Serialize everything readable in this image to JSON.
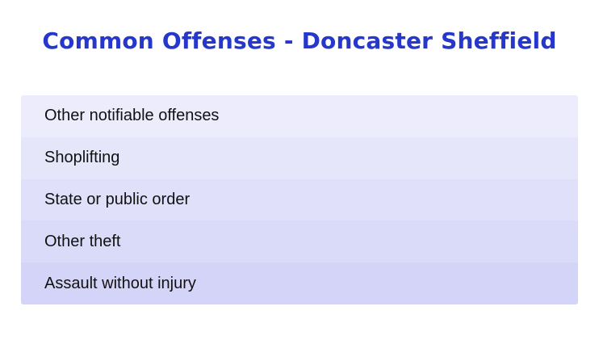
{
  "title": "Common Offenses - Doncaster Sheffield",
  "items": [
    {
      "label": "Other notifiable offenses",
      "color": "#ececfc"
    },
    {
      "label": "Shoplifting",
      "color": "#e6e6fb"
    },
    {
      "label": "State or public order",
      "color": "#e0e0fa"
    },
    {
      "label": "Other theft",
      "color": "#dadaf9"
    },
    {
      "label": "Assault without injury",
      "color": "#d4d4f8"
    }
  ]
}
